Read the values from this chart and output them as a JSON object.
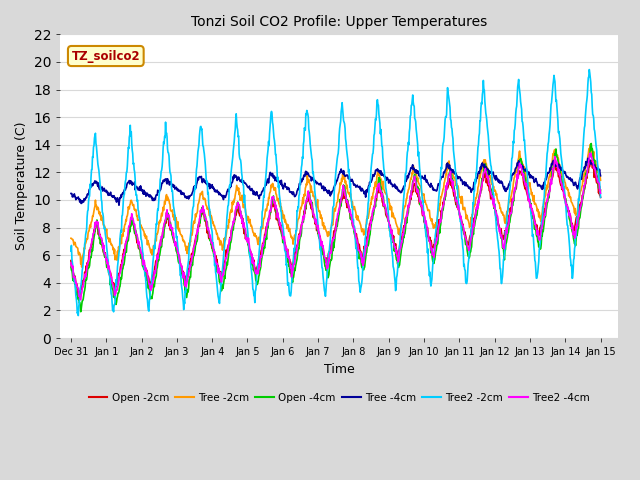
{
  "title": "Tonzi Soil CO2 Profile: Upper Temperatures",
  "xlabel": "Time",
  "ylabel": "Soil Temperature (C)",
  "ylim": [
    0,
    22
  ],
  "background_color": "#d9d9d9",
  "plot_bg_color": "#ffffff",
  "annotation_text": "TZ_soilco2",
  "annotation_facecolor": "#ffffcc",
  "annotation_edgecolor": "#cc8800",
  "series_names": [
    "Open -2cm",
    "Tree -2cm",
    "Open -4cm",
    "Tree -4cm",
    "Tree2 -2cm",
    "Tree2 -4cm"
  ],
  "series_colors": [
    "#dd0000",
    "#ff9900",
    "#00cc00",
    "#000099",
    "#00ccff",
    "#ff00ff"
  ],
  "xtick_labels": [
    "Dec 31",
    "Jan 1",
    "Jan 2",
    "Jan 3",
    "Jan 4",
    "Jan 5",
    "Jan 6",
    "Jan 7",
    "Jan 8",
    "Jan 9",
    "Jan 10",
    "Jan 11",
    "Jan 12",
    "Jan 13",
    "Jan 14",
    "Jan 15"
  ],
  "xtick_positions": [
    0,
    1,
    2,
    3,
    4,
    5,
    6,
    7,
    8,
    9,
    10,
    11,
    12,
    13,
    14,
    15
  ],
  "ytick_positions": [
    0,
    2,
    4,
    6,
    8,
    10,
    12,
    14,
    16,
    18,
    20,
    22
  ],
  "grid_color": "#d9d9d9",
  "lw": 1.2
}
